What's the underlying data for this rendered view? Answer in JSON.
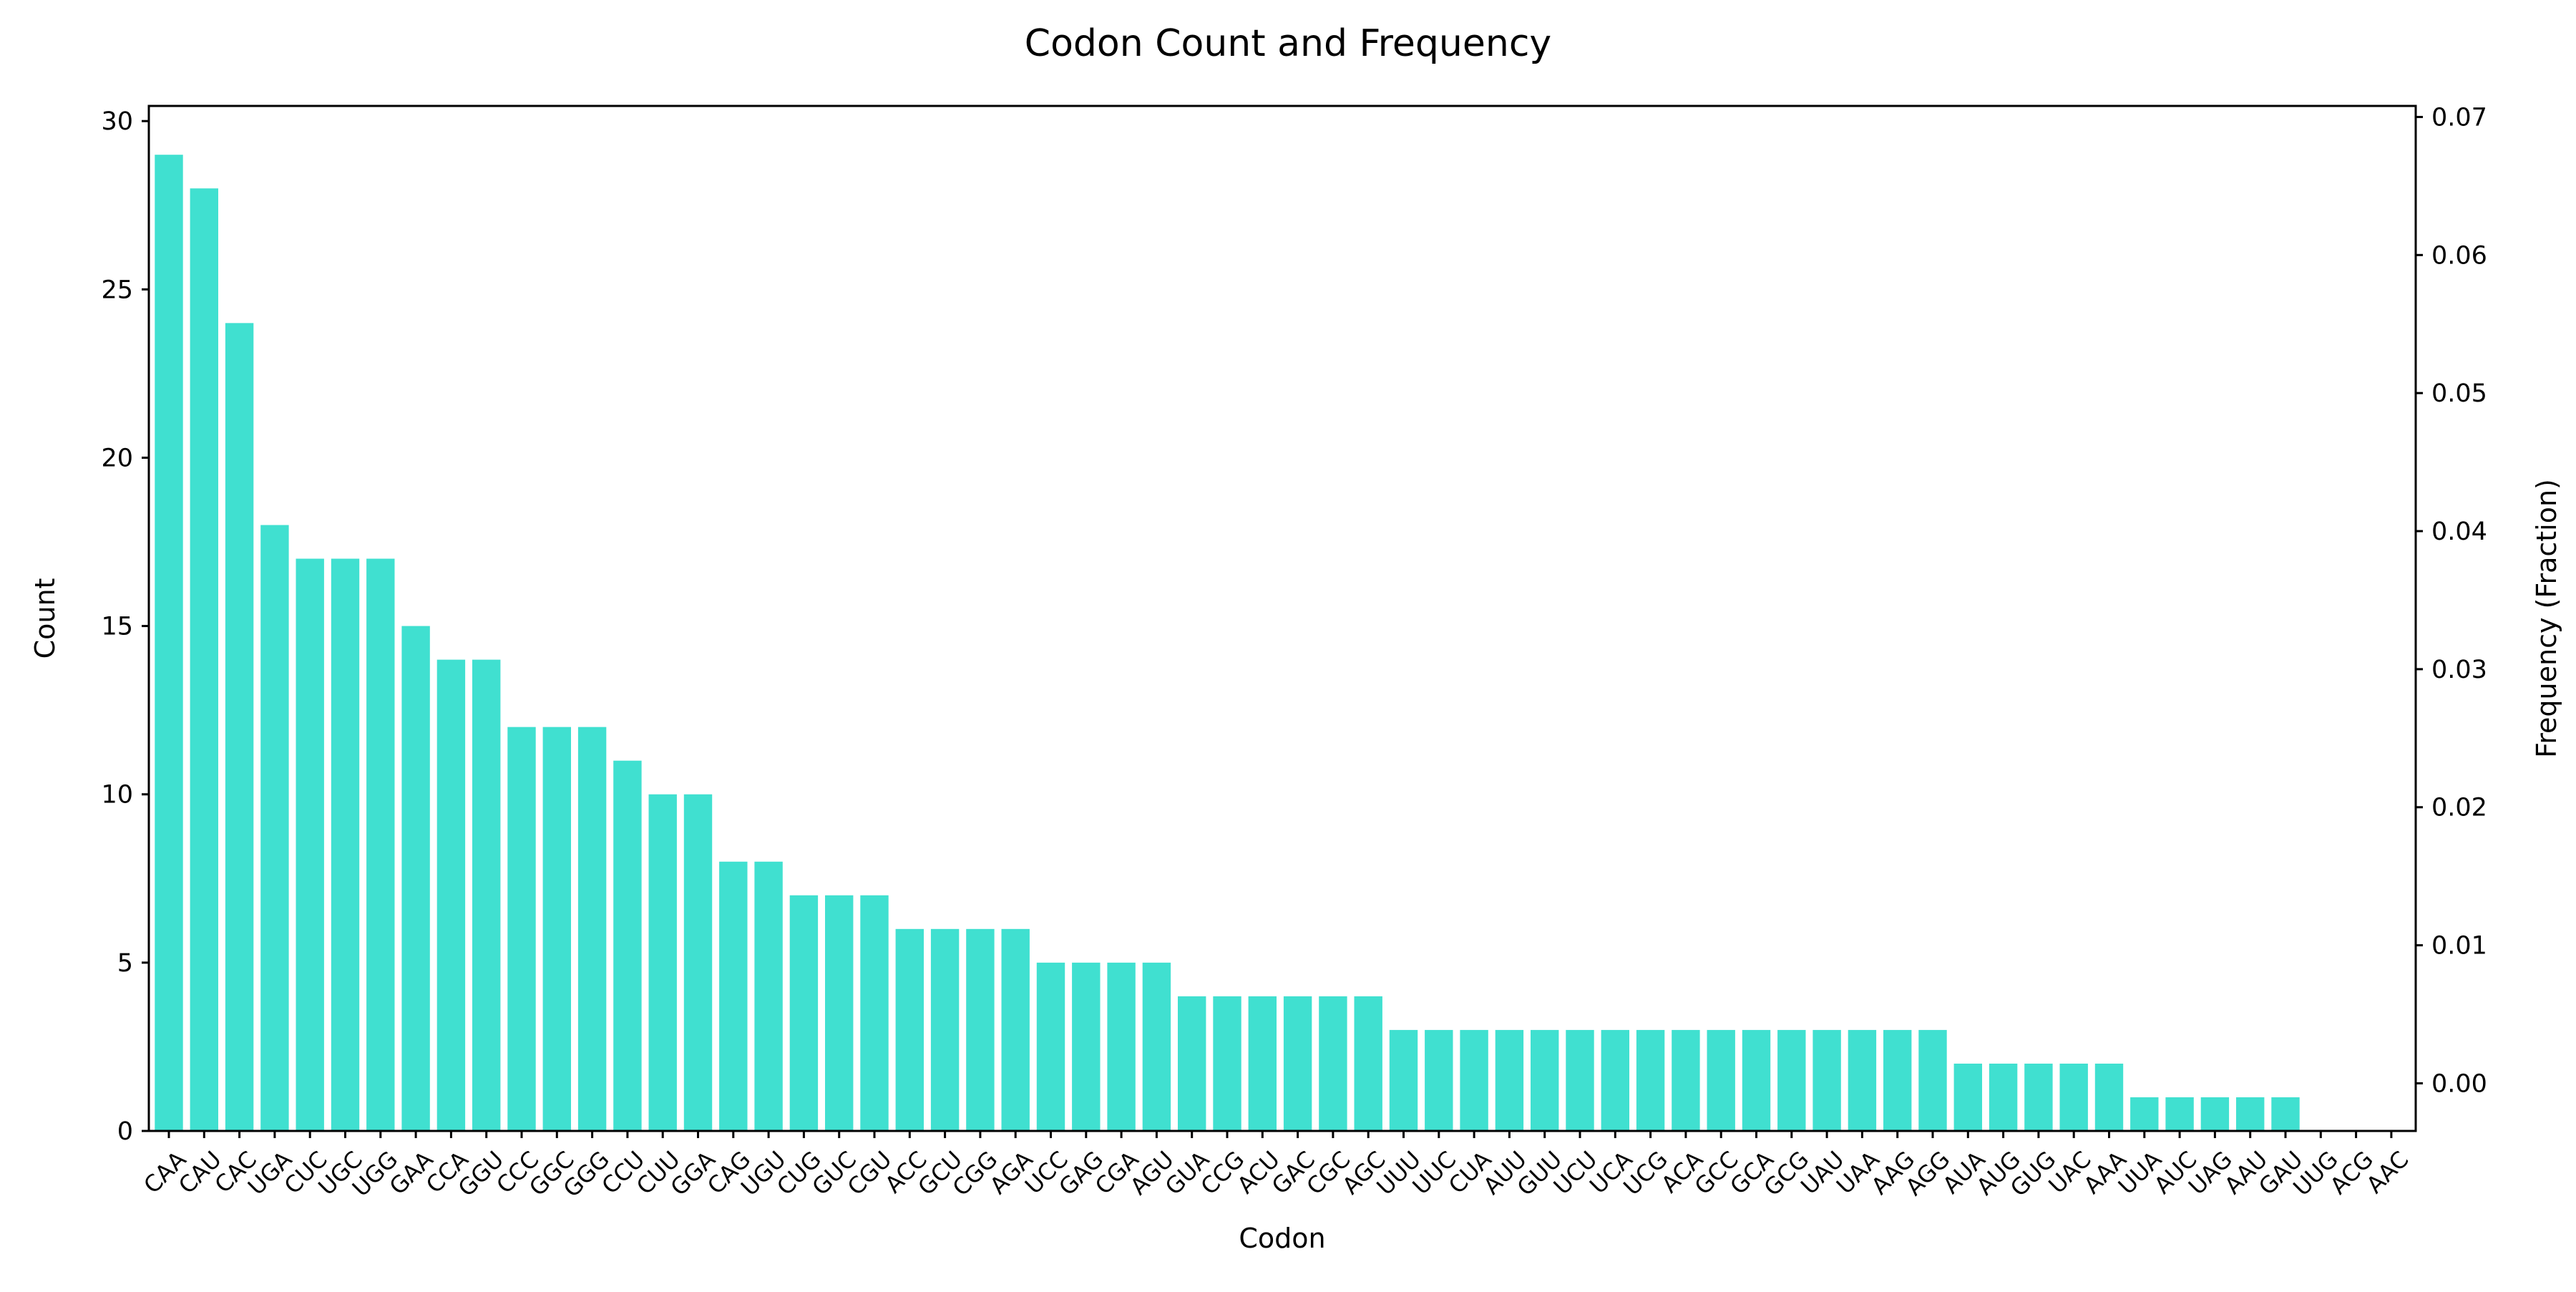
{
  "chart_data": {
    "type": "bar",
    "title": "Codon Count and Frequency",
    "xlabel": "Codon",
    "ylabel": "Count",
    "ylabel_right": "Frequency (Fraction)",
    "bar_color": "#40E0D0",
    "grid": false,
    "legend": "none",
    "categories": [
      "CAA",
      "CAU",
      "CAC",
      "UGA",
      "CUC",
      "UGC",
      "UGG",
      "GAA",
      "CCA",
      "GGU",
      "CCC",
      "GGC",
      "GGG",
      "CCU",
      "CUU",
      "GGA",
      "CAG",
      "UGU",
      "CUG",
      "GUC",
      "CGU",
      "ACC",
      "GCU",
      "CGG",
      "AGA",
      "UCC",
      "GAG",
      "CGA",
      "AGU",
      "GUA",
      "CCG",
      "ACU",
      "GAC",
      "CGC",
      "AGC",
      "UUU",
      "UUC",
      "CUA",
      "AUU",
      "GUU",
      "UCU",
      "UCA",
      "UCG",
      "ACA",
      "GCC",
      "GCA",
      "GCG",
      "UAU",
      "UAA",
      "AAG",
      "AGG",
      "AUA",
      "AUG",
      "GUG",
      "UAC",
      "AAA",
      "UUA",
      "AUC",
      "UAG",
      "AAU",
      "GAU",
      "UUG",
      "ACG",
      "AAC"
    ],
    "values": [
      29,
      28,
      24,
      18,
      17,
      17,
      17,
      15,
      14,
      14,
      12,
      12,
      12,
      11,
      10,
      10,
      8,
      8,
      7,
      7,
      7,
      6,
      6,
      6,
      6,
      5,
      5,
      5,
      5,
      4,
      4,
      4,
      4,
      4,
      4,
      3,
      3,
      3,
      3,
      3,
      3,
      3,
      3,
      3,
      3,
      3,
      3,
      3,
      3,
      3,
      3,
      2,
      2,
      2,
      2,
      2,
      1,
      1,
      1,
      1,
      1,
      0,
      0,
      0
    ],
    "ylim": [
      0,
      30.45
    ],
    "yticks": [
      "0",
      "5",
      "10",
      "15",
      "20",
      "25",
      "30"
    ],
    "ylim_right": [
      -0.00345,
      0.0708
    ],
    "yticks_right": [
      "0.00",
      "0.01",
      "0.02",
      "0.03",
      "0.04",
      "0.05",
      "0.06",
      "0.07"
    ]
  }
}
